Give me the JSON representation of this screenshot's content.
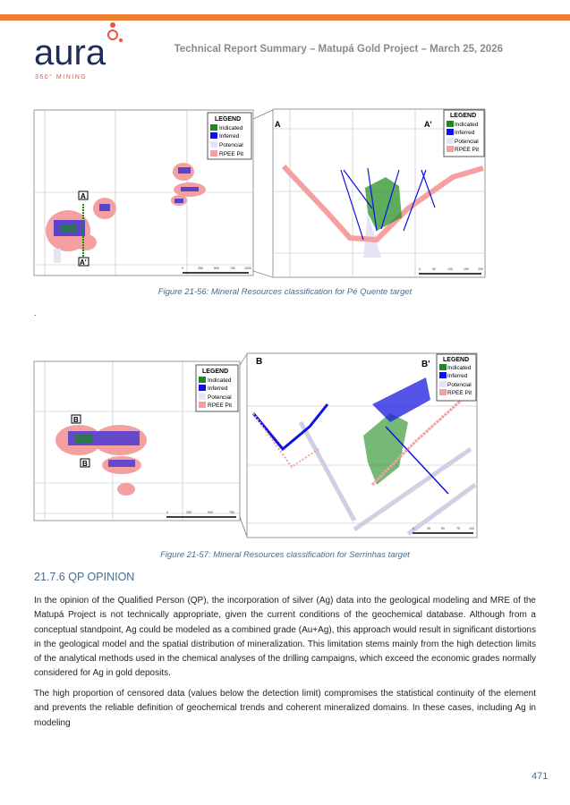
{
  "header": {
    "title": "Technical Report Summary – Matupá Gold Project – March 25, 2026",
    "logo_text": "aura",
    "logo_tagline": "360° MINING",
    "accent": "#ef7d32",
    "logo_color": "#1f2d5c",
    "logo_dot_color": "#e8553d"
  },
  "figure1": {
    "caption": "Figure 21-56: Mineral Resources classification for Pé Quente target",
    "section_start": "A",
    "section_end": "A'",
    "legend": {
      "title": "LEGEND",
      "items": [
        {
          "label": "Indicated",
          "color": "#1a8a1a"
        },
        {
          "label": "Inferred",
          "color": "#1010e0"
        },
        {
          "label": "Potencial",
          "color": "#e4e4f4"
        },
        {
          "label": "RPEE Pit",
          "color": "#f4a0a0"
        }
      ]
    },
    "scale_map": [
      "0",
      "250",
      "500",
      "750",
      "1000"
    ],
    "scale_section": [
      "0",
      "50",
      "100",
      "150",
      "200"
    ]
  },
  "stray_mark": ".",
  "figure2": {
    "caption": "Figure 21-57: Mineral Resources classification for Serrinhas target",
    "section_start": "B",
    "section_end": "B'",
    "legend": {
      "title": "LEGEND",
      "items": [
        {
          "label": "Indicated",
          "color": "#1a8a1a"
        },
        {
          "label": "Inferred",
          "color": "#1010e0"
        },
        {
          "label": "Potencial",
          "color": "#e4e4f4"
        },
        {
          "label": "RPEE Pit",
          "color": "#f4a0a0"
        }
      ]
    },
    "scale_map": [
      "0",
      "250",
      "500",
      "750"
    ],
    "scale_section": [
      "0",
      "25",
      "50",
      "75",
      "100"
    ]
  },
  "section": {
    "heading": "21.7.6  QP OPINION",
    "paragraphs": [
      "In the opinion of the Qualified Person (QP), the incorporation of silver (Ag) data into the geological modeling and MRE of the Matupá Project is not technically appropriate, given the current conditions of the geochemical database. Although from a conceptual standpoint, Ag could be modeled as a combined grade (Au+Ag), this approach would result in significant distortions in the geological model and the spatial distribution of mineralization. This limitation stems mainly from the high detection limits of the analytical methods used in the chemical analyses of the drilling campaigns, which exceed the economic grades normally considered for Ag in gold deposits.",
      "The high proportion of censored data (values below the detection limit) compromises the statistical continuity of the element and prevents the reliable definition of geochemical trends and coherent mineralized domains. In these cases, including Ag in modeling"
    ]
  },
  "page_number": "471"
}
